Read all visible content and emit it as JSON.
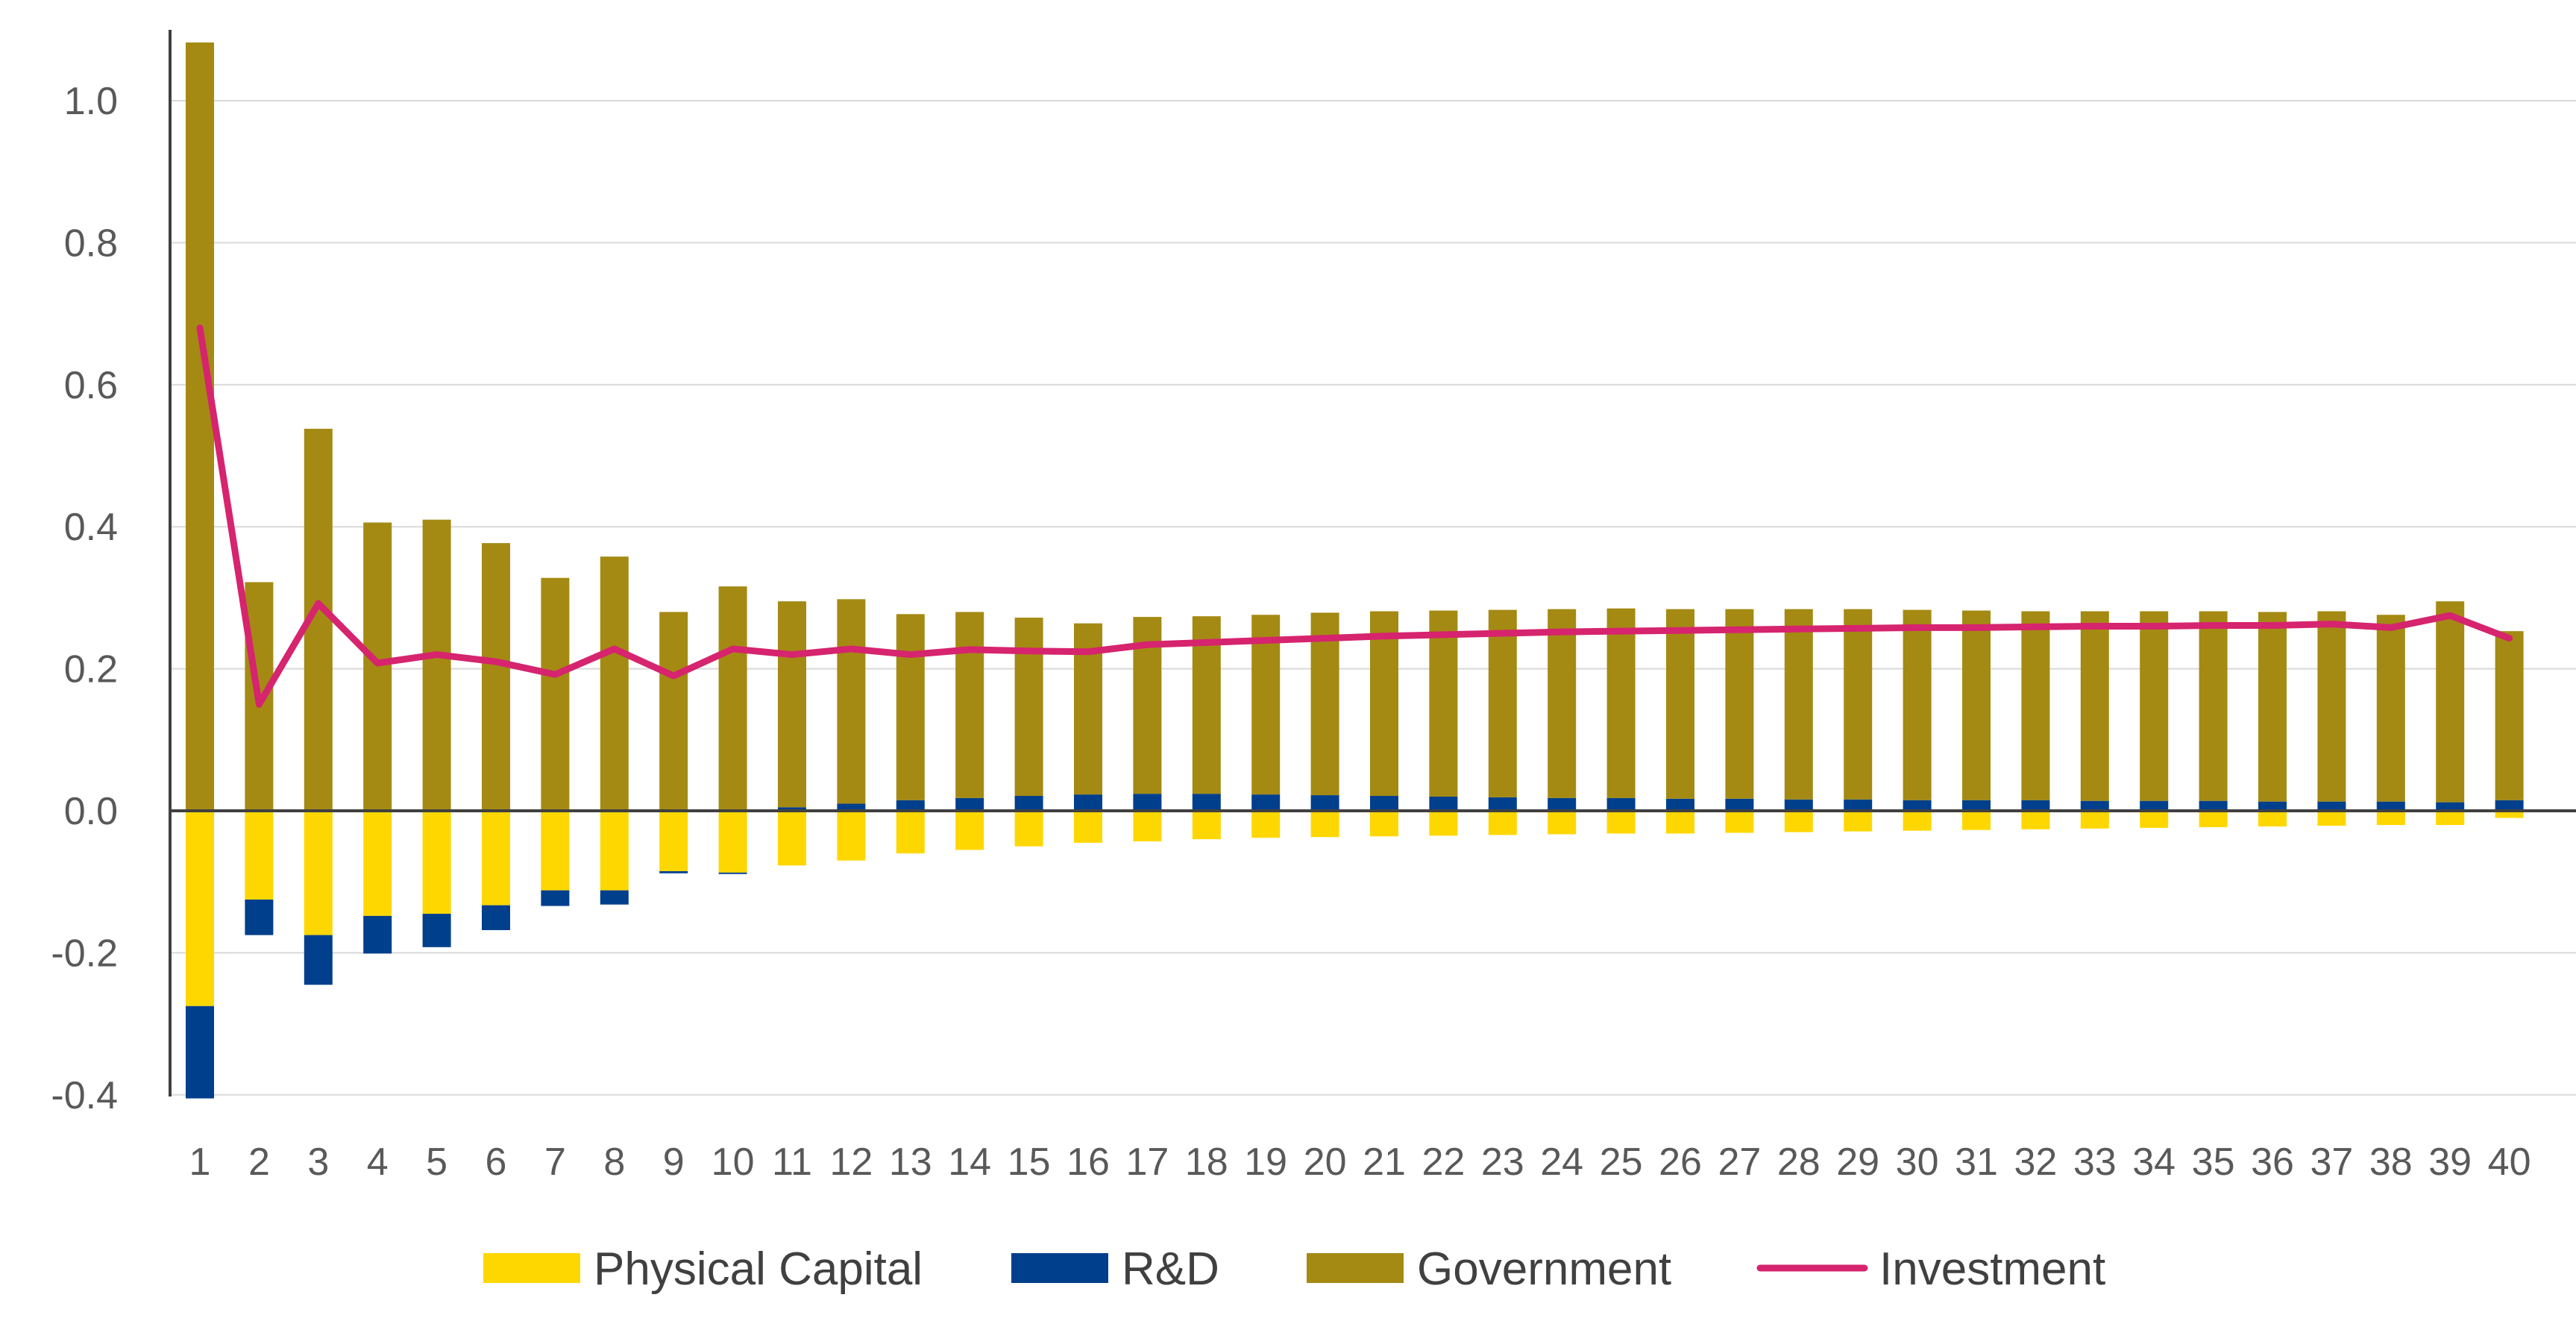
{
  "chart_data": {
    "type": "bar",
    "stacked": true,
    "categories": [
      "1",
      "2",
      "3",
      "4",
      "5",
      "6",
      "7",
      "8",
      "9",
      "10",
      "11",
      "12",
      "13",
      "14",
      "15",
      "16",
      "17",
      "18",
      "19",
      "20",
      "21",
      "22",
      "23",
      "24",
      "25",
      "26",
      "27",
      "28",
      "29",
      "30",
      "31",
      "32",
      "33",
      "34",
      "35",
      "36",
      "37",
      "38",
      "39",
      "40"
    ],
    "series": [
      {
        "name": "Physical Capital",
        "type": "bar",
        "color": "#FFD700",
        "values": [
          -0.275,
          -0.125,
          -0.175,
          -0.148,
          -0.145,
          -0.133,
          -0.112,
          -0.112,
          -0.085,
          -0.087,
          -0.077,
          -0.07,
          -0.06,
          -0.055,
          -0.05,
          -0.045,
          -0.043,
          -0.04,
          -0.038,
          -0.037,
          -0.036,
          -0.035,
          -0.034,
          -0.033,
          -0.032,
          -0.032,
          -0.031,
          -0.03,
          -0.029,
          -0.028,
          -0.027,
          -0.026,
          -0.025,
          -0.024,
          -0.023,
          -0.022,
          -0.021,
          -0.02,
          -0.02,
          -0.01
        ]
      },
      {
        "name": "R&D",
        "type": "bar",
        "color": "#003F8C",
        "values": [
          -0.13,
          -0.05,
          -0.07,
          -0.053,
          -0.047,
          -0.035,
          -0.022,
          -0.02,
          -0.003,
          -0.002,
          0.005,
          0.01,
          0.015,
          0.018,
          0.021,
          0.023,
          0.024,
          0.024,
          0.023,
          0.022,
          0.021,
          0.02,
          0.019,
          0.018,
          0.018,
          0.017,
          0.017,
          0.016,
          0.016,
          0.015,
          0.015,
          0.015,
          0.014,
          0.014,
          0.014,
          0.013,
          0.013,
          0.013,
          0.012,
          0.015
        ]
      },
      {
        "name": "Government",
        "type": "bar",
        "color": "#A48A13",
        "values": [
          1.082,
          0.322,
          0.538,
          0.406,
          0.41,
          0.377,
          0.328,
          0.358,
          0.28,
          0.316,
          0.29,
          0.288,
          0.262,
          0.262,
          0.251,
          0.241,
          0.249,
          0.25,
          0.253,
          0.257,
          0.26,
          0.262,
          0.264,
          0.266,
          0.267,
          0.267,
          0.267,
          0.268,
          0.268,
          0.268,
          0.267,
          0.266,
          0.267,
          0.267,
          0.267,
          0.267,
          0.268,
          0.263,
          0.283,
          0.238
        ]
      },
      {
        "name": "Investment",
        "type": "line",
        "color": "#D6246E",
        "values": [
          0.68,
          0.15,
          0.292,
          0.208,
          0.22,
          0.21,
          0.192,
          0.228,
          0.19,
          0.228,
          0.22,
          0.228,
          0.22,
          0.227,
          0.225,
          0.224,
          0.234,
          0.237,
          0.24,
          0.243,
          0.246,
          0.248,
          0.25,
          0.252,
          0.253,
          0.254,
          0.255,
          0.256,
          0.257,
          0.258,
          0.258,
          0.259,
          0.26,
          0.26,
          0.261,
          0.261,
          0.263,
          0.258,
          0.275,
          0.243
        ]
      }
    ],
    "ylim": [
      -0.4,
      1.1
    ],
    "yticks": [
      "1.0",
      "0.8",
      "0.6",
      "0.4",
      "0.2",
      "0.0",
      "-0.2",
      "-0.4"
    ],
    "ytick_values": [
      1.0,
      0.8,
      0.6,
      0.4,
      0.2,
      0.0,
      -0.2,
      -0.4
    ],
    "grid": true,
    "legend_position": "bottom",
    "title": "",
    "xlabel": "",
    "ylabel": ""
  }
}
